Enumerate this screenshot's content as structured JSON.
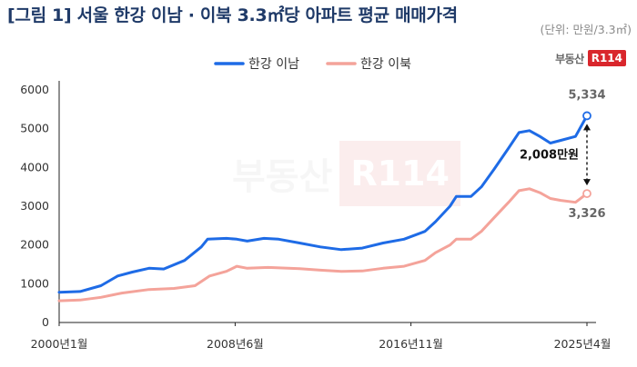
{
  "title": "[그림 1] 서울 한강 이남 · 이북 3.3㎡당 아파트 평균 매매가격",
  "unit": "(단위: 만원/3.3㎡)",
  "logo": {
    "text": "부동산",
    "mark": "R114"
  },
  "watermark": {
    "text": "부동산",
    "mark": "R114"
  },
  "colors": {
    "south": "#1e6be6",
    "north": "#f4a39a",
    "axis": "#222222"
  },
  "chart_data": {
    "type": "line",
    "title": "[그림 1] 서울 한강 이남 · 이북 3.3㎡당 아파트 평균 매매가격",
    "xlabel": "",
    "ylabel": "",
    "x_tick_labels": [
      "2000년1월",
      "2008년6월",
      "2016년11월",
      "2025년4월"
    ],
    "x_tick_years": [
      2000.0,
      2008.42,
      2016.83,
      2025.25
    ],
    "xlim": [
      2000.0,
      2025.25
    ],
    "ylim": [
      0,
      6000
    ],
    "yticks": [
      0,
      1000,
      2000,
      3000,
      4000,
      5000,
      6000
    ],
    "grid": false,
    "legend_position": "top",
    "series": [
      {
        "name": "한강 이남",
        "color": "#1e6be6",
        "x": [
          2000.0,
          2001.0,
          2002.0,
          2002.8,
          2003.5,
          2004.3,
          2005.0,
          2006.0,
          2006.8,
          2007.1,
          2008.0,
          2008.5,
          2009.0,
          2009.8,
          2010.5,
          2011.5,
          2012.5,
          2013.5,
          2014.5,
          2015.5,
          2016.5,
          2017.5,
          2018.0,
          2018.7,
          2019.0,
          2019.7,
          2020.2,
          2020.8,
          2021.5,
          2022.0,
          2022.5,
          2023.0,
          2023.5,
          2024.0,
          2024.7,
          2025.25
        ],
        "y": [
          780,
          800,
          950,
          1200,
          1300,
          1400,
          1380,
          1600,
          1950,
          2150,
          2170,
          2150,
          2100,
          2170,
          2150,
          2050,
          1950,
          1880,
          1920,
          2050,
          2150,
          2350,
          2600,
          3000,
          3250,
          3250,
          3500,
          3950,
          4500,
          4900,
          4950,
          4800,
          4630,
          4700,
          4800,
          5334
        ],
        "end_label": "5,334"
      },
      {
        "name": "한강 이북",
        "color": "#f4a39a",
        "x": [
          2000.0,
          2001.0,
          2002.0,
          2003.0,
          2004.3,
          2005.5,
          2006.5,
          2007.2,
          2008.0,
          2008.5,
          2009.0,
          2010.0,
          2011.5,
          2012.5,
          2013.5,
          2014.5,
          2015.5,
          2016.5,
          2017.5,
          2018.0,
          2018.7,
          2019.0,
          2019.7,
          2020.2,
          2020.8,
          2021.5,
          2022.0,
          2022.5,
          2023.0,
          2023.5,
          2024.0,
          2024.7,
          2025.25
        ],
        "y": [
          560,
          580,
          650,
          760,
          850,
          880,
          950,
          1200,
          1320,
          1450,
          1400,
          1420,
          1390,
          1350,
          1320,
          1330,
          1400,
          1450,
          1600,
          1800,
          2000,
          2150,
          2150,
          2350,
          2700,
          3100,
          3400,
          3450,
          3350,
          3200,
          3150,
          3100,
          3326
        ],
        "end_label": "3,326"
      }
    ],
    "annotations": [
      {
        "text": "2,008만원",
        "from_series": 1,
        "to_series": 0,
        "at_x": 2025.25
      }
    ]
  }
}
